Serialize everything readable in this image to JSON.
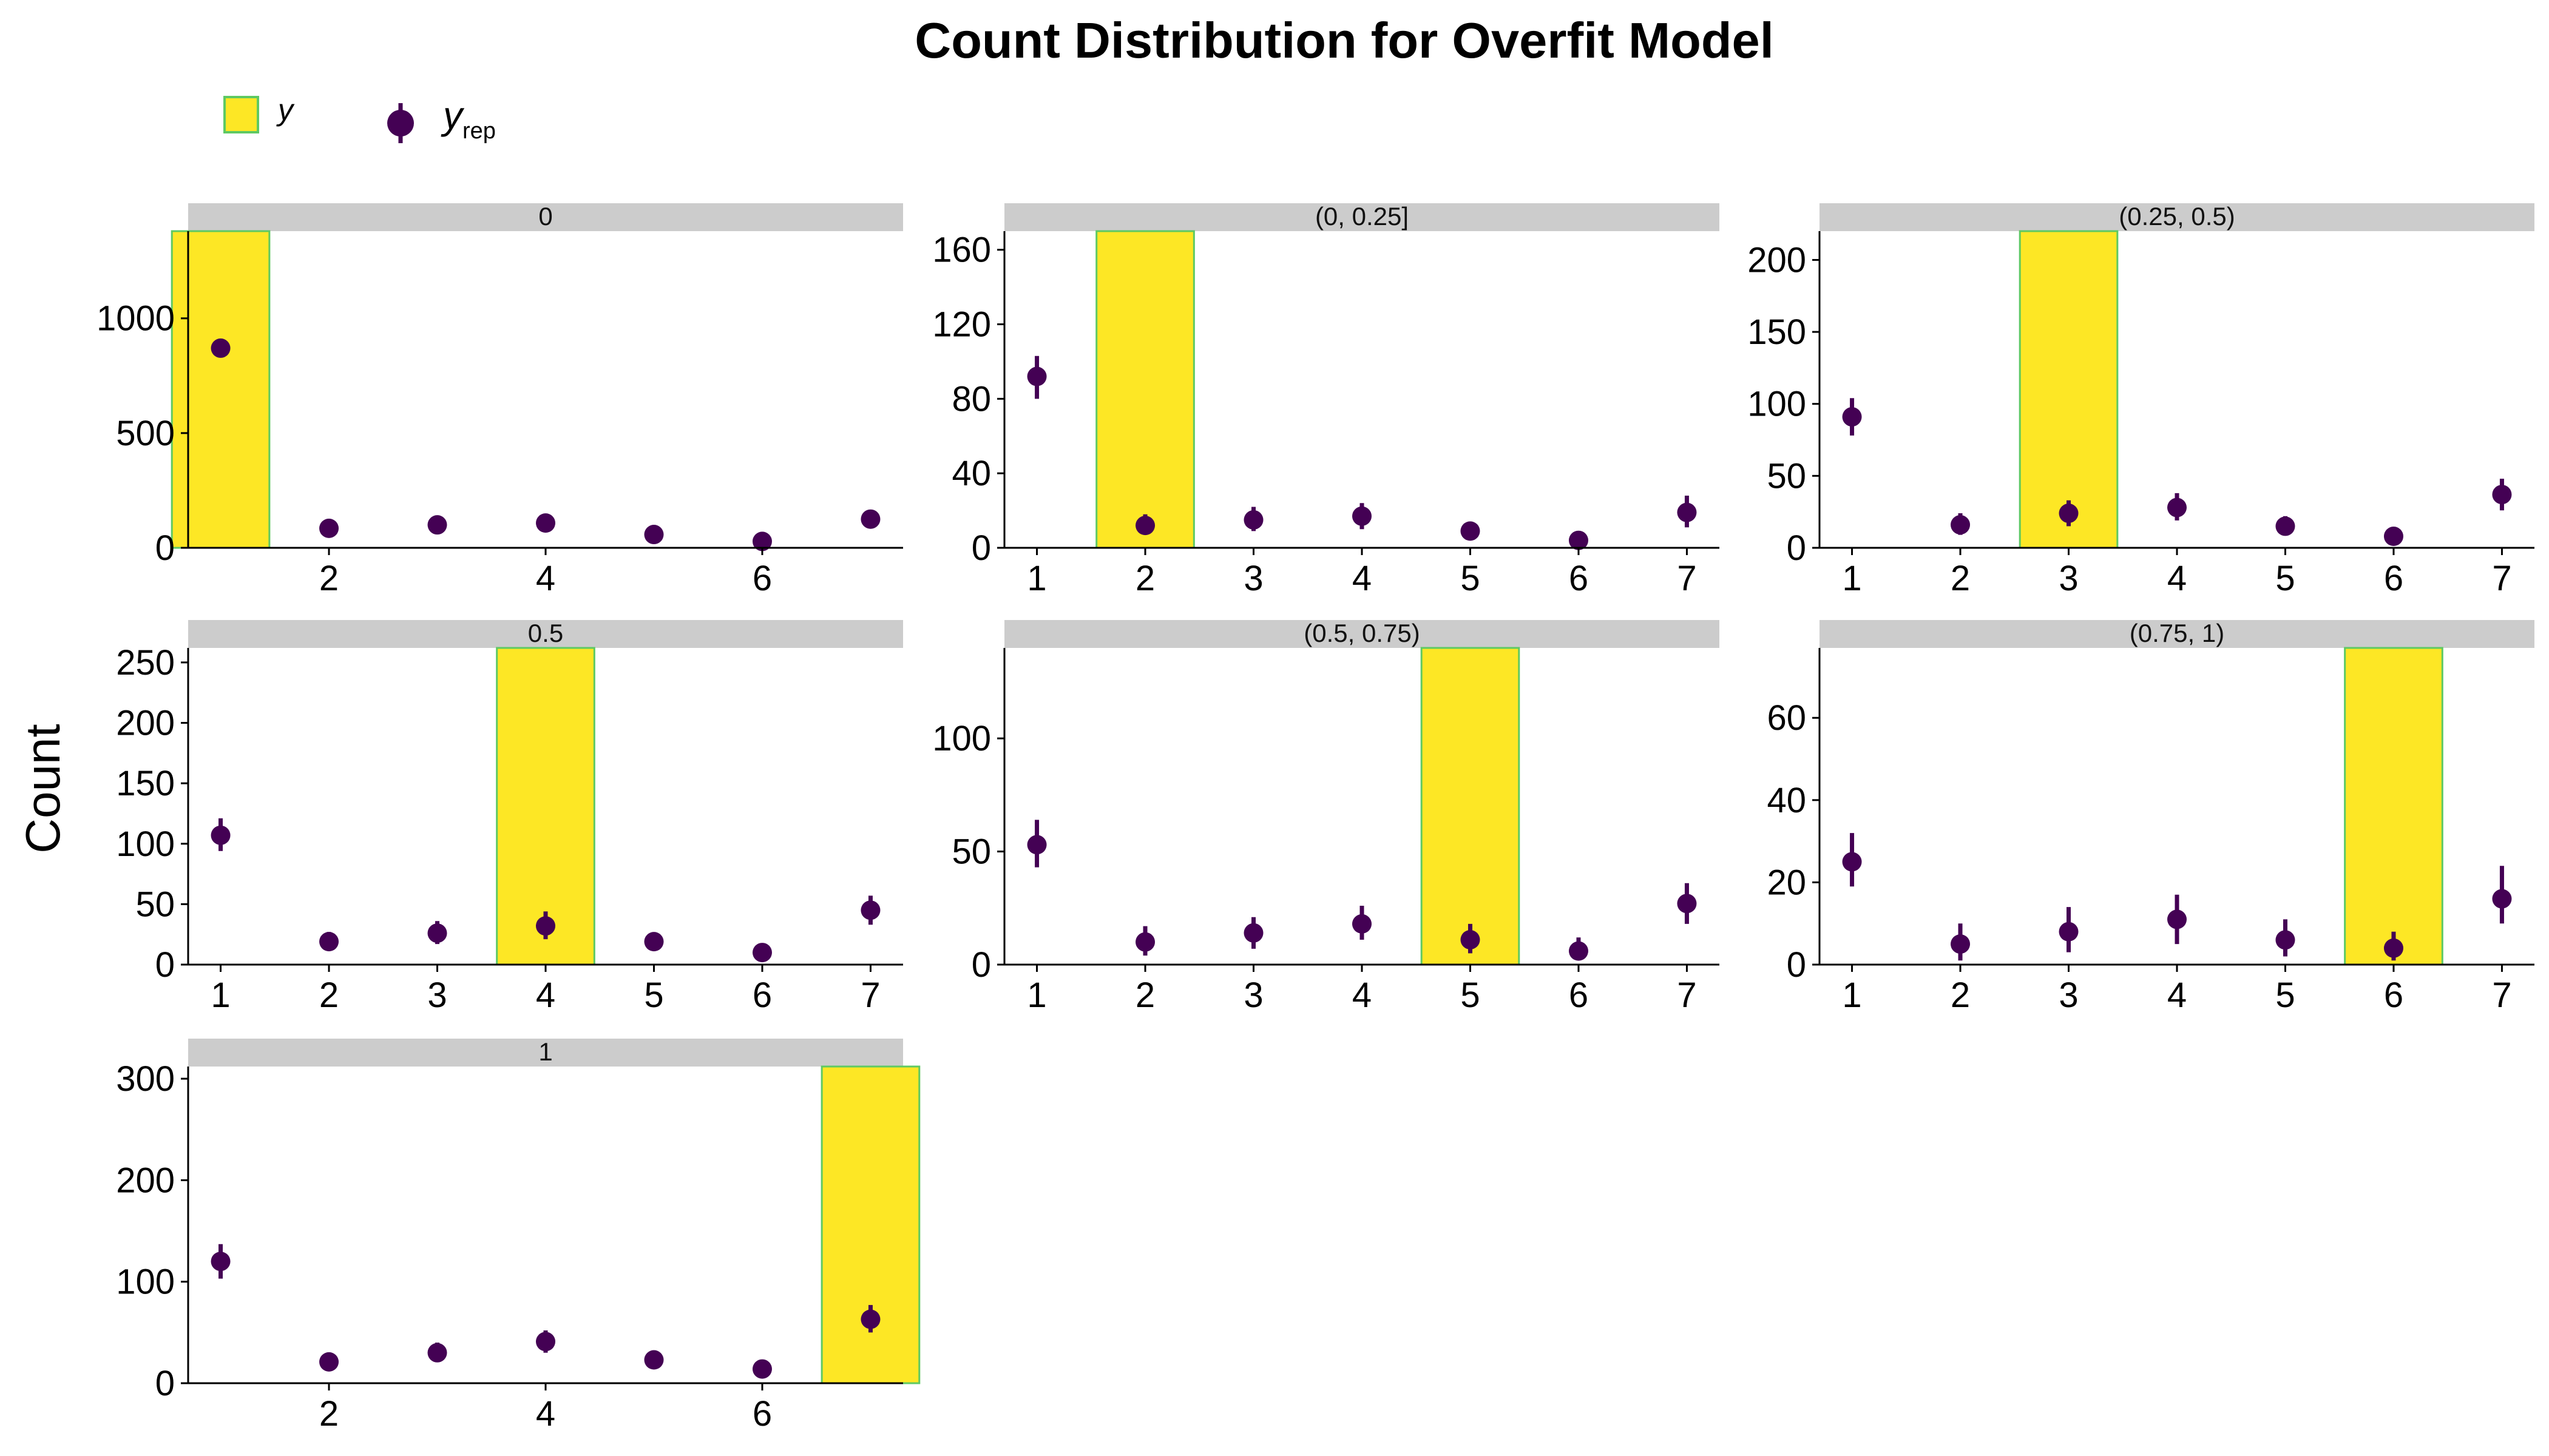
{
  "chart_data": {
    "type": "bar",
    "title": "Count Distribution for Overfit Model",
    "xlabel": "",
    "ylabel": "Count",
    "legend": {
      "position": "top-left",
      "items": [
        {
          "label": "y",
          "kind": "bar"
        },
        {
          "label": "y",
          "subscript": "rep",
          "kind": "pointrange"
        }
      ]
    },
    "colors": {
      "observed_fill": "#fde725",
      "observed_stroke": "#5ec962",
      "replicated": "#440154",
      "strip": "#cccccc"
    },
    "grid": false,
    "panels": [
      {
        "strip": "0",
        "x_ticks": [
          "2",
          "4",
          "6"
        ],
        "y_ticks": [
          "0",
          "500",
          "1000"
        ],
        "ylim": [
          0,
          1380
        ],
        "observed": {
          "x": 1,
          "y": 1380
        },
        "replicated": [
          {
            "x": 1,
            "y": 870,
            "lo": 845,
            "hi": 895
          },
          {
            "x": 2,
            "y": 85,
            "lo": 70,
            "hi": 100
          },
          {
            "x": 3,
            "y": 100,
            "lo": 85,
            "hi": 118
          },
          {
            "x": 4,
            "y": 108,
            "lo": 90,
            "hi": 126
          },
          {
            "x": 5,
            "y": 58,
            "lo": 45,
            "hi": 72
          },
          {
            "x": 6,
            "y": 28,
            "lo": 18,
            "hi": 38
          },
          {
            "x": 7,
            "y": 125,
            "lo": 106,
            "hi": 145
          }
        ]
      },
      {
        "strip": "(0, 0.25]",
        "x_ticks": [
          "1",
          "2",
          "3",
          "4",
          "5",
          "6",
          "7"
        ],
        "y_ticks": [
          "0",
          "40",
          "80",
          "120",
          "160"
        ],
        "ylim": [
          0,
          170
        ],
        "observed": {
          "x": 2,
          "y": 170
        },
        "replicated": [
          {
            "x": 1,
            "y": 92,
            "lo": 80,
            "hi": 103
          },
          {
            "x": 2,
            "y": 12,
            "lo": 7,
            "hi": 18
          },
          {
            "x": 3,
            "y": 15,
            "lo": 9,
            "hi": 22
          },
          {
            "x": 4,
            "y": 17,
            "lo": 10,
            "hi": 24
          },
          {
            "x": 5,
            "y": 9,
            "lo": 5,
            "hi": 14
          },
          {
            "x": 6,
            "y": 4,
            "lo": 1,
            "hi": 7
          },
          {
            "x": 7,
            "y": 19,
            "lo": 11,
            "hi": 28
          }
        ]
      },
      {
        "strip": "(0.25, 0.5)",
        "x_ticks": [
          "1",
          "2",
          "3",
          "4",
          "5",
          "6",
          "7"
        ],
        "y_ticks": [
          "0",
          "50",
          "100",
          "150",
          "200"
        ],
        "ylim": [
          0,
          220
        ],
        "observed": {
          "x": 3,
          "y": 220
        },
        "replicated": [
          {
            "x": 1,
            "y": 91,
            "lo": 78,
            "hi": 104
          },
          {
            "x": 2,
            "y": 16,
            "lo": 9,
            "hi": 24
          },
          {
            "x": 3,
            "y": 24,
            "lo": 15,
            "hi": 33
          },
          {
            "x": 4,
            "y": 28,
            "lo": 19,
            "hi": 38
          },
          {
            "x": 5,
            "y": 15,
            "lo": 9,
            "hi": 22
          },
          {
            "x": 6,
            "y": 8,
            "lo": 3,
            "hi": 14
          },
          {
            "x": 7,
            "y": 37,
            "lo": 26,
            "hi": 48
          }
        ]
      },
      {
        "strip": "0.5",
        "x_ticks": [
          "1",
          "2",
          "3",
          "4",
          "5",
          "6",
          "7"
        ],
        "y_ticks": [
          "0",
          "50",
          "100",
          "150",
          "200",
          "250"
        ],
        "ylim": [
          0,
          262
        ],
        "observed": {
          "x": 4,
          "y": 262
        },
        "replicated": [
          {
            "x": 1,
            "y": 107,
            "lo": 94,
            "hi": 121
          },
          {
            "x": 2,
            "y": 19,
            "lo": 12,
            "hi": 27
          },
          {
            "x": 3,
            "y": 26,
            "lo": 17,
            "hi": 36
          },
          {
            "x": 4,
            "y": 32,
            "lo": 21,
            "hi": 44
          },
          {
            "x": 5,
            "y": 19,
            "lo": 12,
            "hi": 26
          },
          {
            "x": 6,
            "y": 10,
            "lo": 5,
            "hi": 16
          },
          {
            "x": 7,
            "y": 45,
            "lo": 33,
            "hi": 57
          }
        ]
      },
      {
        "strip": "(0.5, 0.75)",
        "x_ticks": [
          "1",
          "2",
          "3",
          "4",
          "5",
          "6",
          "7"
        ],
        "y_ticks": [
          "0",
          "50",
          "100"
        ],
        "ylim": [
          0,
          140
        ],
        "observed": {
          "x": 5,
          "y": 140
        },
        "replicated": [
          {
            "x": 1,
            "y": 53,
            "lo": 43,
            "hi": 64
          },
          {
            "x": 2,
            "y": 10,
            "lo": 4,
            "hi": 17
          },
          {
            "x": 3,
            "y": 14,
            "lo": 7,
            "hi": 21
          },
          {
            "x": 4,
            "y": 18,
            "lo": 11,
            "hi": 26
          },
          {
            "x": 5,
            "y": 11,
            "lo": 5,
            "hi": 18
          },
          {
            "x": 6,
            "y": 6,
            "lo": 2,
            "hi": 12
          },
          {
            "x": 7,
            "y": 27,
            "lo": 18,
            "hi": 36
          }
        ]
      },
      {
        "strip": "(0.75, 1)",
        "x_ticks": [
          "1",
          "2",
          "3",
          "4",
          "5",
          "6",
          "7"
        ],
        "y_ticks": [
          "0",
          "20",
          "40",
          "60"
        ],
        "ylim": [
          0,
          77
        ],
        "observed": {
          "x": 6,
          "y": 77
        },
        "replicated": [
          {
            "x": 1,
            "y": 25,
            "lo": 19,
            "hi": 32
          },
          {
            "x": 2,
            "y": 5,
            "lo": 1,
            "hi": 10
          },
          {
            "x": 3,
            "y": 8,
            "lo": 3,
            "hi": 14
          },
          {
            "x": 4,
            "y": 11,
            "lo": 5,
            "hi": 17
          },
          {
            "x": 5,
            "y": 6,
            "lo": 2,
            "hi": 11
          },
          {
            "x": 6,
            "y": 4,
            "lo": 1,
            "hi": 8
          },
          {
            "x": 7,
            "y": 16,
            "lo": 10,
            "hi": 24
          }
        ]
      },
      {
        "strip": "1",
        "x_ticks": [
          "2",
          "4",
          "6"
        ],
        "y_ticks": [
          "0",
          "100",
          "200",
          "300"
        ],
        "ylim": [
          0,
          312
        ],
        "observed": {
          "x": 7,
          "y": 312
        },
        "replicated": [
          {
            "x": 1,
            "y": 120,
            "lo": 103,
            "hi": 137
          },
          {
            "x": 2,
            "y": 21,
            "lo": 14,
            "hi": 29
          },
          {
            "x": 3,
            "y": 30,
            "lo": 21,
            "hi": 40
          },
          {
            "x": 4,
            "y": 41,
            "lo": 30,
            "hi": 52
          },
          {
            "x": 5,
            "y": 23,
            "lo": 15,
            "hi": 31
          },
          {
            "x": 6,
            "y": 14,
            "lo": 8,
            "hi": 21
          },
          {
            "x": 7,
            "y": 63,
            "lo": 50,
            "hi": 77
          }
        ]
      }
    ]
  }
}
